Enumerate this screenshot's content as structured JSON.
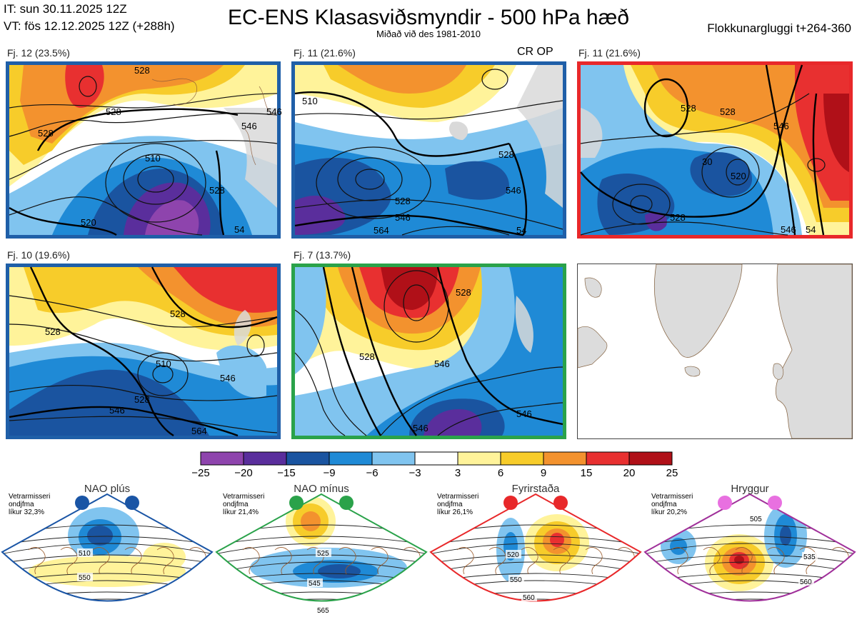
{
  "header": {
    "init_time": "IT: sun 30.11.2025 12Z",
    "valid_time": "VT: fös 12.12.2025 12Z  (+288h)",
    "title": "EC-ENS Klasasviðsmyndir - 500 hPa hæð",
    "subtitle": "Miðað við des 1981-2010",
    "window": "Flokkunargluggi t+264-360"
  },
  "panels": [
    {
      "label": "Fj. 12 (23.5%)",
      "marker": "",
      "frame_color": "#1f5fa8"
    },
    {
      "label": "Fj. 11 (21.6%)",
      "marker": "CR OP",
      "frame_color": "#1f5fa8"
    },
    {
      "label": "Fj. 11 (21.6%)",
      "marker": "",
      "frame_color": "#e8282a"
    },
    {
      "label": "Fj. 10 (19.6%)",
      "marker": "",
      "frame_color": "#1f5fa8"
    },
    {
      "label": "Fj. 7 (13.7%)",
      "marker": "",
      "frame_color": "#2aa24a"
    }
  ],
  "contour_labels": {
    "p1": [
      "528",
      "528",
      "528",
      "510",
      "528",
      "546",
      "520",
      "546",
      "54"
    ],
    "p2": [
      "510",
      "528",
      "528",
      "546",
      "546",
      "564",
      "54"
    ],
    "p3": [
      "528",
      "528",
      "546",
      "520",
      "528",
      "30",
      "546",
      "54"
    ],
    "p4": [
      "528",
      "528",
      "510",
      "546",
      "528",
      "546",
      "564"
    ],
    "p5": [
      "528",
      "528",
      "546",
      "546",
      "546"
    ]
  },
  "colorbar": {
    "ticks": [
      "−25",
      "−20",
      "−15",
      "−9",
      "−6",
      "−3",
      "3",
      "6",
      "9",
      "15",
      "20",
      "25"
    ],
    "colors": [
      "#8e44ad",
      "#5a2e9c",
      "#1a54a0",
      "#1f8ad6",
      "#80c4ef",
      "#ffffff",
      "#fff39a",
      "#f7cc2a",
      "#f3922e",
      "#e83030",
      "#b01018"
    ]
  },
  "regimes": [
    {
      "name": "NAO plús",
      "note_l1": "Vetrarmisseri",
      "note_l2": "ondjfma",
      "note_l3": "líkur 32,3%",
      "color": "#1a55a5",
      "contours": [
        "510",
        "550"
      ]
    },
    {
      "name": "NAO mínus",
      "note_l1": "Vetrarmisseri",
      "note_l2": "ondjfma",
      "note_l3": "líkur 21,4%",
      "color": "#2aa24a",
      "contours": [
        "525",
        "545",
        "565"
      ]
    },
    {
      "name": "Fyrirstaða",
      "note_l1": "Vetrarmisseri",
      "note_l2": "ondjfma",
      "note_l3": "líkur 26,1%",
      "color": "#e8282a",
      "contours": [
        "520",
        "550",
        "560"
      ]
    },
    {
      "name": "Hryggur",
      "note_l1": "Vetrarmisseri",
      "note_l2": "ondjfma",
      "note_l3": "líkur 20,2%",
      "color": "#a0309a",
      "contours": [
        "505",
        "535",
        "560"
      ]
    }
  ]
}
